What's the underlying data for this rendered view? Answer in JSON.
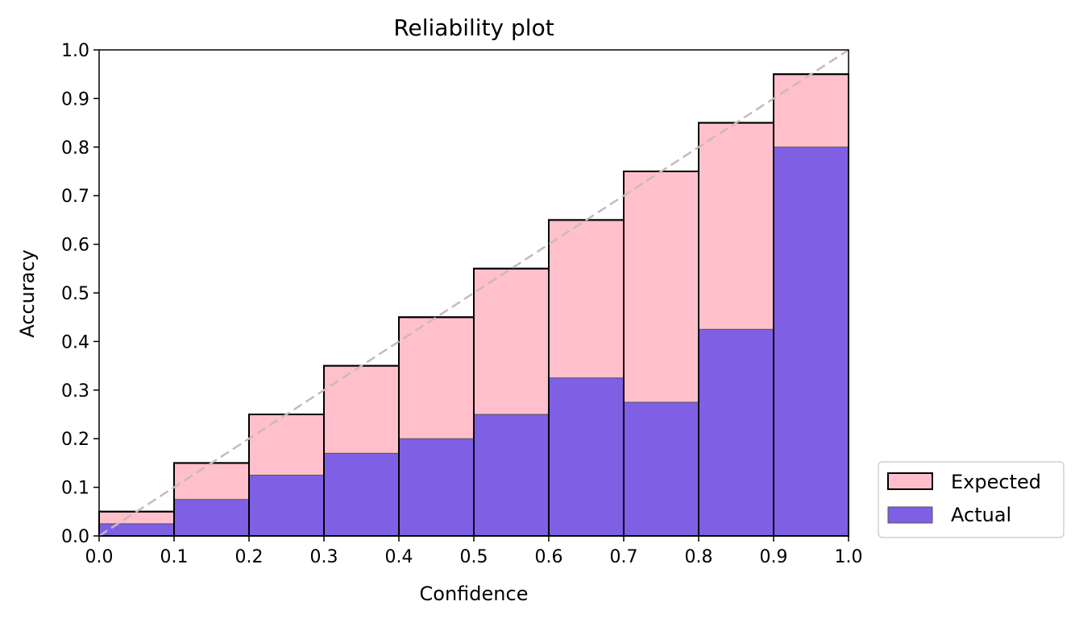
{
  "chart_data": {
    "type": "bar",
    "title": "Reliability plot",
    "xlabel": "Confidence",
    "ylabel": "Accuracy",
    "xlim": [
      0.0,
      1.0
    ],
    "ylim": [
      0.0,
      1.0
    ],
    "grid": false,
    "legend_position": "outside-bottom-right",
    "bin_edges": [
      0.0,
      0.1,
      0.2,
      0.3,
      0.4,
      0.5,
      0.6,
      0.7,
      0.8,
      0.9,
      1.0
    ],
    "x_ticks": [
      "0.0",
      "0.1",
      "0.2",
      "0.3",
      "0.4",
      "0.5",
      "0.6",
      "0.7",
      "0.8",
      "0.9",
      "1.0"
    ],
    "y_ticks": [
      "0.0",
      "0.1",
      "0.2",
      "0.3",
      "0.4",
      "0.5",
      "0.6",
      "0.7",
      "0.8",
      "0.9",
      "1.0"
    ],
    "series": [
      {
        "name": "Expected",
        "color": "#ffc0cb",
        "edge_color": "#000000",
        "values": [
          0.05,
          0.15,
          0.25,
          0.35,
          0.45,
          0.55,
          0.65,
          0.75,
          0.85,
          0.95
        ]
      },
      {
        "name": "Actual",
        "color": "#7f5fe3",
        "edge_color": "#555555",
        "values": [
          0.025,
          0.075,
          0.125,
          0.17,
          0.2,
          0.25,
          0.325,
          0.275,
          0.425,
          0.8
        ]
      }
    ],
    "reference_line": {
      "x": [
        0.0,
        1.0
      ],
      "y": [
        0.0,
        1.0
      ],
      "style": "dashed",
      "color": "#c9b8bd"
    }
  }
}
